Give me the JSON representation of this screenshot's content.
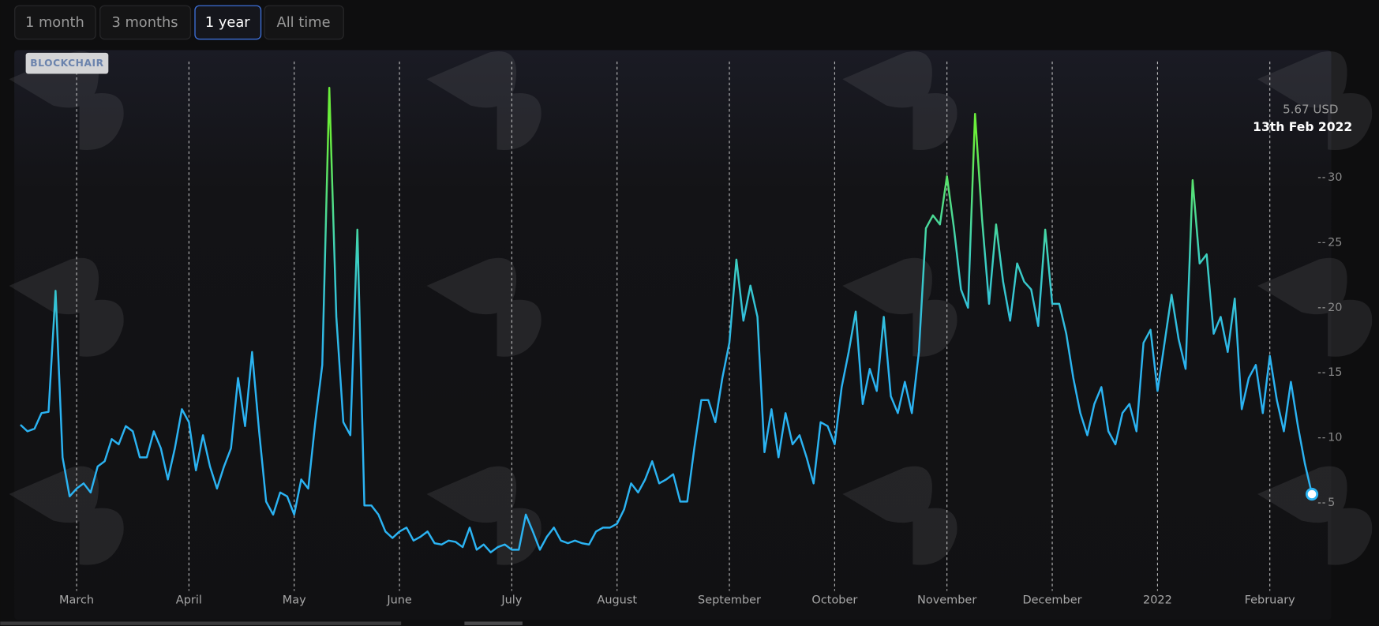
{
  "buttons": [
    "1 month",
    "3 months",
    "1 year",
    "All time"
  ],
  "selected_button": 2,
  "brand": "BLOCKCHAIR",
  "tooltip": {
    "value_label": "5.67 USD",
    "date": "13th Feb 2022"
  },
  "chart_data": {
    "type": "line",
    "color": "#2bb3f2",
    "high_color": "#6aee3c",
    "ylim": [
      -1.8,
      39.5
    ],
    "yticks": [
      5,
      10,
      15,
      20,
      25,
      30
    ],
    "categories": [
      null,
      null,
      null,
      null,
      null,
      null,
      null,
      null,
      "March",
      null,
      null,
      null,
      null,
      null,
      null,
      null,
      null,
      null,
      null,
      null,
      null,
      null,
      null,
      null,
      "April",
      null,
      null,
      null,
      null,
      null,
      null,
      null,
      null,
      null,
      null,
      null,
      null,
      null,
      null,
      "May",
      null,
      null,
      null,
      null,
      null,
      null,
      null,
      null,
      null,
      null,
      null,
      null,
      null,
      null,
      "June",
      null,
      null,
      null,
      null,
      null,
      null,
      null,
      null,
      null,
      null,
      null,
      null,
      null,
      null,
      null,
      "July",
      null,
      null,
      null,
      null,
      null,
      null,
      null,
      null,
      null,
      null,
      null,
      null,
      null,
      null,
      "August",
      null,
      null,
      null,
      null,
      null,
      null,
      null,
      null,
      null,
      null,
      null,
      null,
      null,
      null,
      null,
      "September",
      null,
      null,
      null,
      null,
      null,
      null,
      null,
      null,
      null,
      null,
      null,
      null,
      null,
      null,
      "October",
      null,
      null,
      null,
      null,
      null,
      null,
      null,
      null,
      null,
      null,
      null,
      null,
      null,
      null,
      null,
      "November",
      null,
      null,
      null,
      null,
      null,
      null,
      null,
      null,
      null,
      null,
      null,
      null,
      null,
      null,
      "December",
      null,
      null,
      null,
      null,
      null,
      null,
      null,
      null,
      null,
      null,
      null,
      null,
      null,
      null,
      "2022",
      null,
      null,
      null,
      null,
      null,
      null,
      null,
      null,
      null,
      null,
      null,
      null,
      null,
      null,
      null,
      "February",
      null,
      null,
      null,
      null,
      null,
      null
    ],
    "values": [
      11,
      10.5,
      10.7,
      11.9,
      12,
      21.3,
      8.5,
      5.5,
      6.1,
      6.5,
      5.8,
      7.8,
      8.2,
      9.9,
      9.5,
      10.9,
      10.5,
      8.5,
      8.5,
      10.5,
      9.2,
      6.8,
      9.2,
      12.2,
      11.2,
      7.5,
      10.2,
      7.8,
      6.1,
      7.8,
      9.2,
      14.6,
      10.9,
      16.6,
      10.5,
      5.1,
      4.1,
      5.8,
      5.5,
      4.1,
      6.8,
      6.1,
      11.2,
      15.6,
      36.9,
      19.3,
      11.2,
      10.2,
      26,
      4.8,
      4.8,
      4.1,
      2.8,
      2.3,
      2.8,
      3.1,
      2.1,
      2.4,
      2.8,
      1.9,
      1.8,
      2.1,
      2,
      1.6,
      3.1,
      1.4,
      1.8,
      1.2,
      1.6,
      1.8,
      1.4,
      1.4,
      4.1,
      2.8,
      1.4,
      2.4,
      3.1,
      2.1,
      1.9,
      2.1,
      1.9,
      1.8,
      2.8,
      3.1,
      3.1,
      3.4,
      4.5,
      6.5,
      5.8,
      6.8,
      8.2,
      6.5,
      6.8,
      7.2,
      5.1,
      5.1,
      9.2,
      12.9,
      12.9,
      11.2,
      14.6,
      17.3,
      23.7,
      19,
      21.7,
      19.3,
      8.9,
      12.2,
      8.5,
      11.9,
      9.5,
      10.2,
      8.5,
      6.5,
      11.2,
      10.9,
      9.5,
      13.9,
      16.6,
      19.7,
      12.6,
      15.3,
      13.6,
      19.3,
      13.2,
      11.9,
      14.3,
      11.9,
      16.6,
      26.1,
      27.1,
      26.4,
      30.1,
      26.1,
      21.4,
      20,
      34.9,
      26.8,
      20.3,
      26.4,
      22,
      19,
      23.4,
      22,
      21.4,
      18.6,
      26,
      20.3,
      20.3,
      18,
      14.6,
      11.9,
      10.2,
      12.6,
      13.9,
      10.5,
      9.5,
      11.9,
      12.6,
      10.5,
      17.3,
      18.3,
      13.6,
      17.3,
      21,
      17.6,
      15.3,
      29.8,
      23.4,
      24.1,
      18,
      19.3,
      16.6,
      20.7,
      12.2,
      14.6,
      15.6,
      11.9,
      16.3,
      12.9,
      10.5,
      14.3,
      10.9,
      8,
      5.67
    ]
  }
}
